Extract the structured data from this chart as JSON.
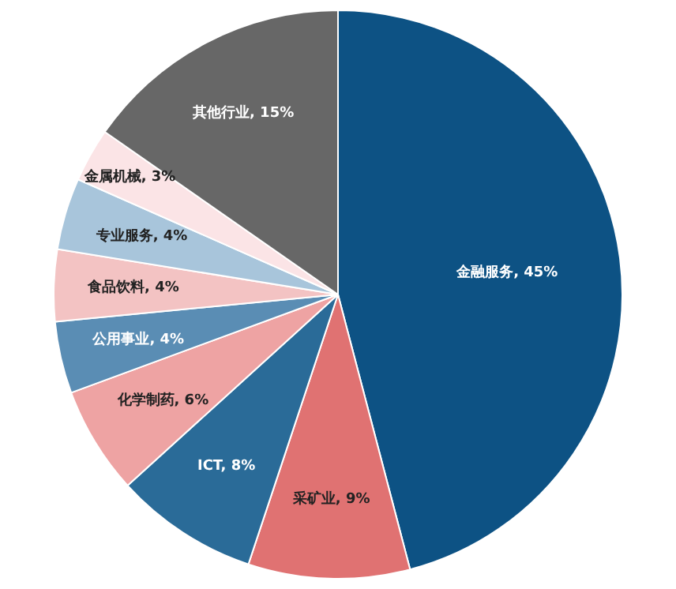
{
  "chart_data": {
    "type": "pie",
    "categories": [
      "金融服务",
      "采矿业",
      "ICT",
      "化学制药",
      "公用事业",
      "食品饮料",
      "专业服务",
      "金属机械",
      "其他行业"
    ],
    "values": [
      45,
      9,
      8,
      6,
      4,
      4,
      4,
      3,
      15
    ],
    "value_labels": [
      "45%",
      "9%",
      "8%",
      "6%",
      "4%",
      "4%",
      "4%",
      "3%",
      "15%"
    ],
    "colors": [
      "#0d5284",
      "#e07272",
      "#2a6b98",
      "#eea3a3",
      "#5a8db4",
      "#f3c3c3",
      "#a8c5db",
      "#fbe4e6",
      "#676767"
    ],
    "legend": false
  }
}
